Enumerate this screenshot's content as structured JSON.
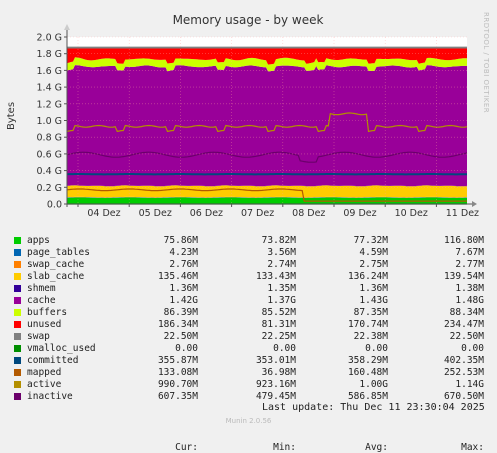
{
  "chart_data": {
    "type": "area",
    "title": "Memory usage - by week",
    "ylabel": "Bytes",
    "y_ticks": [
      "0.0",
      "0.2 G",
      "0.4 G",
      "0.6 G",
      "0.8 G",
      "1.0 G",
      "1.2 G",
      "1.4 G",
      "1.6 G",
      "1.8 G",
      "2.0 G"
    ],
    "ylim": [
      0,
      2.0
    ],
    "y_unit": "G",
    "x_ticks": [
      "04 Dez",
      "05 Dez",
      "06 Dez",
      "07 Dez",
      "08 Dez",
      "09 Dez",
      "10 Dez",
      "11 Dez"
    ],
    "grid": true,
    "stacked": true,
    "series": [
      {
        "name": "apps",
        "color": "#00cc00",
        "approx_G": 0.08
      },
      {
        "name": "page_tables",
        "color": "#0066b3",
        "approx_G": 0.004
      },
      {
        "name": "swap_cache",
        "color": "#ff8000",
        "approx_G": 0.003
      },
      {
        "name": "slab_cache",
        "color": "#ffcc00",
        "approx_G": 0.14
      },
      {
        "name": "shmem",
        "color": "#330099",
        "approx_G": 0.001
      },
      {
        "name": "cache",
        "color": "#990099",
        "approx_G": 1.42
      },
      {
        "name": "buffers",
        "color": "#ccff00",
        "approx_G": 0.087
      },
      {
        "name": "unused",
        "color": "#ff0000",
        "approx_G": 0.19
      },
      {
        "name": "swap",
        "color": "#808080",
        "approx_G": 0.023
      },
      {
        "name": "vmalloc_used",
        "color": "#008f00",
        "line": true
      },
      {
        "name": "committed",
        "color": "#00487d",
        "line": true,
        "approx_G": 0.36
      },
      {
        "name": "mapped",
        "color": "#b35a00",
        "line": true,
        "approx_G": 0.13
      },
      {
        "name": "active",
        "color": "#b38f00",
        "line": true,
        "approx_G": 0.99
      },
      {
        "name": "inactive",
        "color": "#6b006b",
        "line": true,
        "approx_G": 0.61
      }
    ]
  },
  "legend": {
    "headers": [
      "Cur:",
      "Min:",
      "Avg:",
      "Max:"
    ],
    "rows": [
      {
        "name": "apps",
        "color": "#00cc00",
        "cur": "75.86M",
        "min": "73.82M",
        "avg": "77.32M",
        "max": "116.80M"
      },
      {
        "name": "page_tables",
        "color": "#0066b3",
        "cur": "4.23M",
        "min": "3.56M",
        "avg": "4.59M",
        "max": "7.67M"
      },
      {
        "name": "swap_cache",
        "color": "#ff8000",
        "cur": "2.76M",
        "min": "2.74M",
        "avg": "2.75M",
        "max": "2.77M"
      },
      {
        "name": "slab_cache",
        "color": "#ffcc00",
        "cur": "135.46M",
        "min": "133.43M",
        "avg": "136.24M",
        "max": "139.54M"
      },
      {
        "name": "shmem",
        "color": "#330099",
        "cur": "1.36M",
        "min": "1.35M",
        "avg": "1.36M",
        "max": "1.38M"
      },
      {
        "name": "cache",
        "color": "#990099",
        "cur": "1.42G",
        "min": "1.37G",
        "avg": "1.43G",
        "max": "1.48G"
      },
      {
        "name": "buffers",
        "color": "#ccff00",
        "cur": "86.39M",
        "min": "85.52M",
        "avg": "87.35M",
        "max": "88.34M"
      },
      {
        "name": "unused",
        "color": "#ff0000",
        "cur": "186.34M",
        "min": "81.31M",
        "avg": "170.74M",
        "max": "234.47M"
      },
      {
        "name": "swap",
        "color": "#808080",
        "cur": "22.50M",
        "min": "22.25M",
        "avg": "22.38M",
        "max": "22.50M"
      },
      {
        "name": "vmalloc_used",
        "color": "#008f00",
        "cur": "0.00",
        "min": "0.00",
        "avg": "0.00",
        "max": "0.00"
      },
      {
        "name": "committed",
        "color": "#00487d",
        "cur": "355.87M",
        "min": "353.01M",
        "avg": "358.29M",
        "max": "402.35M"
      },
      {
        "name": "mapped",
        "color": "#b35a00",
        "cur": "133.08M",
        "min": "36.98M",
        "avg": "160.48M",
        "max": "252.53M"
      },
      {
        "name": "active",
        "color": "#b38f00",
        "cur": "990.70M",
        "min": "923.16M",
        "avg": "1.00G",
        "max": "1.14G"
      },
      {
        "name": "inactive",
        "color": "#6b006b",
        "cur": "607.35M",
        "min": "479.45M",
        "avg": "586.85M",
        "max": "670.50M"
      }
    ]
  },
  "footer": {
    "last_update": "Last update: Thu Dec 11 23:30:04 2025",
    "munin": "Munin 2.0.56",
    "side_label": "RRDTOOL / TOBI OETIKER"
  }
}
